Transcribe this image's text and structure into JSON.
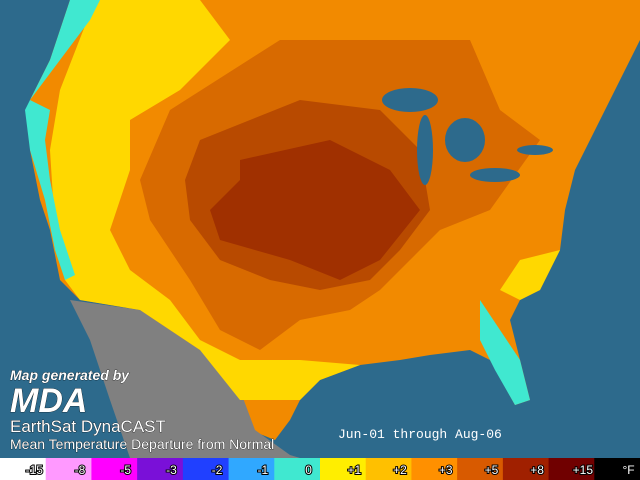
{
  "credit": {
    "generated_by": "Map generated by",
    "logo": "MDA",
    "product": "EarthSat DynaCAST",
    "description": "Mean Temperature Departure from Normal"
  },
  "period": "Jun-01 through Aug-06",
  "legend": {
    "labels": [
      "-15",
      "-8",
      "-5",
      "-3",
      "-2",
      "-1",
      "0",
      "+1",
      "+2",
      "+3",
      "+5",
      "+8",
      "+15",
      "°F"
    ],
    "colors": [
      "#ffffff",
      "#ff99ff",
      "#ff00ff",
      "#7a10d8",
      "#2040ff",
      "#30a8ff",
      "#40e8d0",
      "#ffee00",
      "#ffc000",
      "#ff9000",
      "#d85a00",
      "#a02000",
      "#700000",
      "#000000"
    ]
  }
}
